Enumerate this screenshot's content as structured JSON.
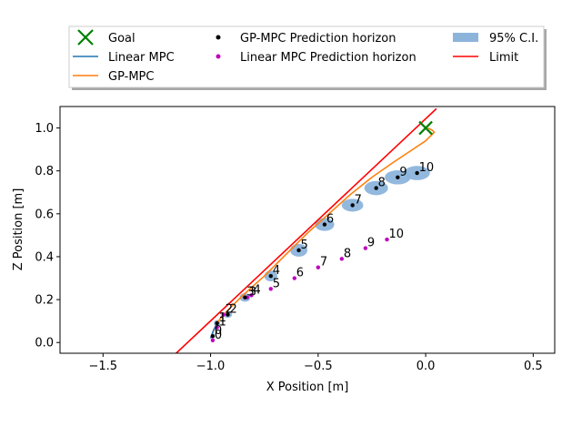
{
  "chart_data": {
    "type": "line",
    "xlabel": "X Position [m]",
    "ylabel": "Z Position [m]",
    "xlim": [
      -1.7,
      0.6
    ],
    "ylim": [
      -0.05,
      1.1
    ],
    "xticks": [
      -1.5,
      -1.0,
      -0.5,
      0.0,
      0.5
    ],
    "xtick_labels": [
      "−1.5",
      "−1.0",
      "−0.5",
      "0.0",
      "0.5"
    ],
    "yticks": [
      0.0,
      0.2,
      0.4,
      0.6,
      0.8,
      1.0
    ],
    "ytick_labels": [
      "0.0",
      "0.2",
      "0.4",
      "0.6",
      "0.8",
      "1.0"
    ],
    "grid": false,
    "legend_placement": "top, outside the axes, three columns",
    "legend": [
      {
        "label": "Goal",
        "kind": "marker-x",
        "color": "#008000"
      },
      {
        "label": "Linear MPC",
        "kind": "line",
        "color": "#1f77b4"
      },
      {
        "label": "GP-MPC",
        "kind": "line",
        "color": "#ff7f0e"
      },
      {
        "label": "GP-MPC Prediction horizon",
        "kind": "dot",
        "color": "#000000"
      },
      {
        "label": "Linear MPC Prediction horizon",
        "kind": "dot",
        "color": "#bf00bf"
      },
      {
        "label": "95% C.I.",
        "kind": "patch",
        "color": "#8cb4db"
      },
      {
        "label": "Limit",
        "kind": "line",
        "color": "#ff0000"
      }
    ],
    "goal": {
      "x": 0.0,
      "y": 1.0
    },
    "limit": {
      "x": [
        -1.16,
        0.05
      ],
      "y": [
        -0.05,
        1.09
      ]
    },
    "series": [
      {
        "name": "GP-MPC",
        "color": "#ff7f0e",
        "x": [
          -1.0,
          -0.98,
          -0.95,
          -0.9,
          -0.85,
          -0.75,
          -0.65,
          -0.55,
          -0.45,
          -0.35,
          -0.25,
          -0.15,
          -0.06,
          0.0,
          0.03,
          0.04,
          0.03,
          0.01
        ],
        "y": [
          0.02,
          0.07,
          0.12,
          0.17,
          0.22,
          0.31,
          0.41,
          0.51,
          0.6,
          0.69,
          0.77,
          0.84,
          0.9,
          0.94,
          0.97,
          0.98,
          0.99,
          1.0
        ]
      },
      {
        "name": "Linear MPC",
        "color": "#1f77b4",
        "x": [
          -1.0,
          -0.985,
          -0.97
        ],
        "y": [
          0.02,
          0.06,
          0.09
        ]
      }
    ],
    "gp_horizon": {
      "color": "#000000",
      "labels": [
        "0",
        "1",
        "2",
        "3",
        "4",
        "5",
        "6",
        "7",
        "8",
        "9",
        "10"
      ],
      "x": [
        -0.99,
        -0.97,
        -0.92,
        -0.84,
        -0.72,
        -0.59,
        -0.47,
        -0.34,
        -0.23,
        -0.13,
        -0.04
      ],
      "y": [
        0.03,
        0.09,
        0.13,
        0.21,
        0.31,
        0.43,
        0.55,
        0.64,
        0.72,
        0.77,
        0.79
      ],
      "ci_x_halfwidth": [
        0.01,
        0.015,
        0.02,
        0.025,
        0.03,
        0.04,
        0.045,
        0.05,
        0.055,
        0.06,
        0.06
      ],
      "ci_y_halfwidth": [
        0.01,
        0.015,
        0.015,
        0.02,
        0.025,
        0.03,
        0.03,
        0.03,
        0.033,
        0.033,
        0.033
      ]
    },
    "linear_horizon": {
      "color": "#bf00bf",
      "labels": [
        "0",
        "1",
        "2",
        "3",
        "4",
        "5",
        "6",
        "7",
        "8",
        "9",
        "10"
      ],
      "x": [
        -0.99,
        -0.97,
        -0.94,
        -0.83,
        -0.81,
        -0.72,
        -0.61,
        -0.5,
        -0.39,
        -0.28,
        -0.18
      ],
      "y": [
        0.01,
        0.07,
        0.13,
        0.21,
        0.22,
        0.25,
        0.3,
        0.35,
        0.39,
        0.44,
        0.48
      ]
    }
  }
}
